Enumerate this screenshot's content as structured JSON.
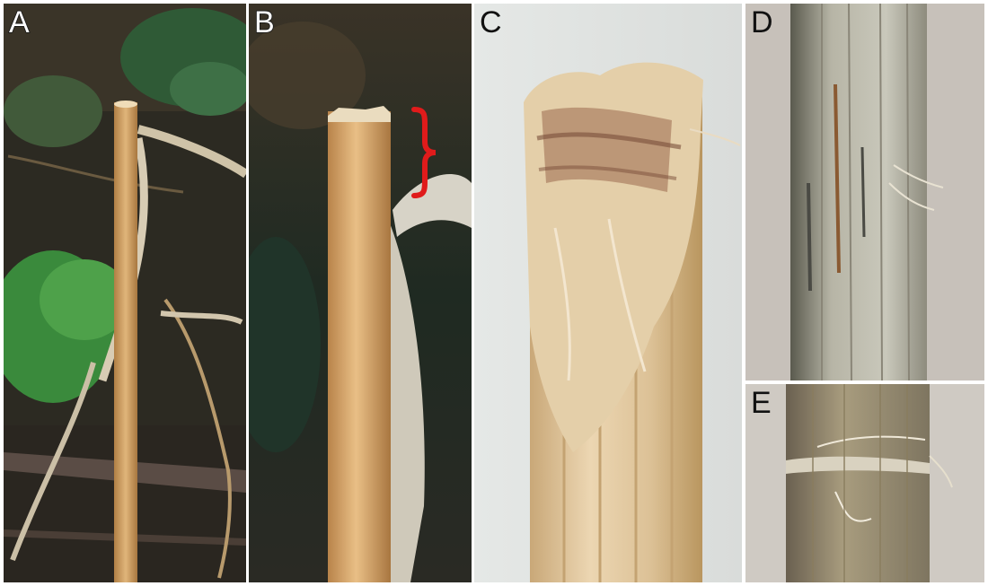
{
  "panels": [
    {
      "letter": "A",
      "subject": "dry-stubble-stem-in-field"
    },
    {
      "letter": "B",
      "subject": "cut-stem-top-closeup"
    },
    {
      "letter": "C",
      "subject": "shredded-stem-end"
    },
    {
      "letter": "D",
      "subject": "stem-surface-with-lesions"
    },
    {
      "letter": "E",
      "subject": "frayed-stem-node"
    }
  ],
  "colors": {
    "background": "#ffffff",
    "straw": "#d9a96a",
    "annotation_bracket": "#e01b1b",
    "label_fill": "#ffffff",
    "label_outline": "#1a1a1a"
  }
}
